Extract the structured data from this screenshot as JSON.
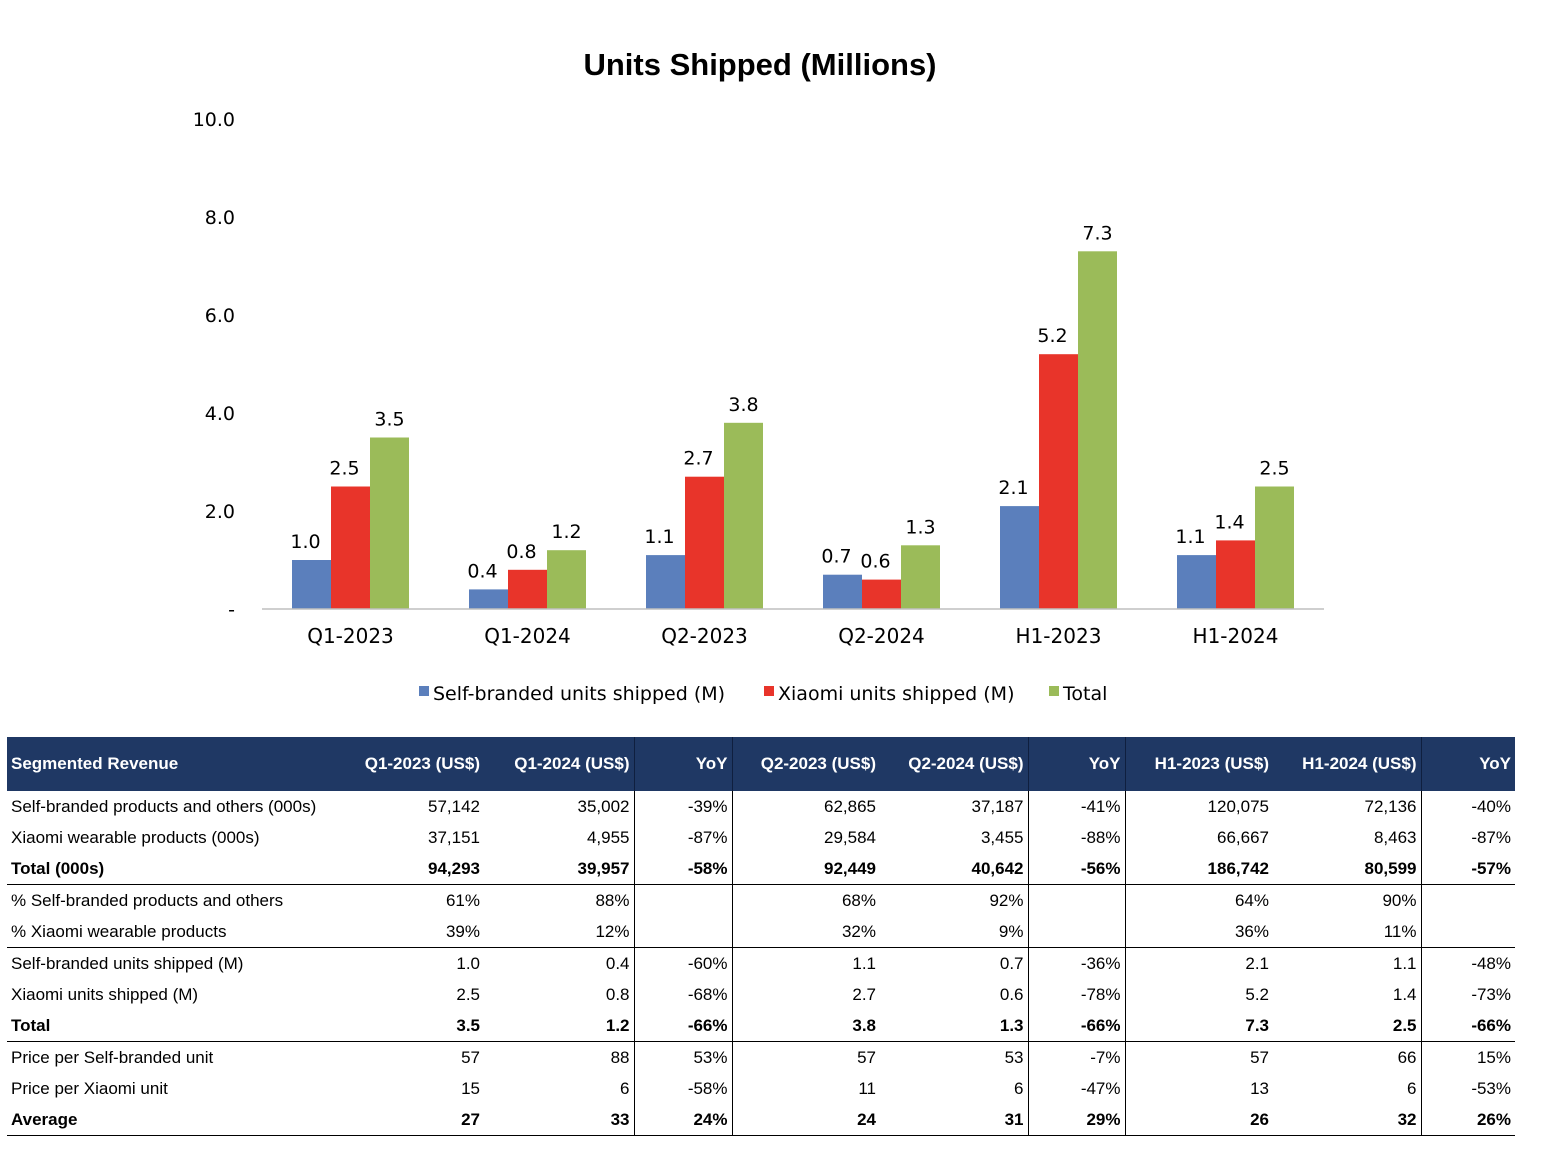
{
  "chart_data": {
    "type": "bar",
    "title": "Units  Shipped (Millions)",
    "categories": [
      "Q1-2023",
      "Q1-2024",
      "Q2-2023",
      "Q2-2024",
      "H1-2023",
      "H1-2024"
    ],
    "series": [
      {
        "name": "Self-branded units shipped (M)",
        "color": "#5b7fbc",
        "values": [
          1.0,
          0.4,
          1.1,
          0.7,
          2.1,
          1.1
        ],
        "labels": [
          "1.0",
          "0.4",
          "1.1",
          "0.7",
          "2.1",
          "1.1"
        ]
      },
      {
        "name": "Xiaomi units shipped (M)",
        "color": "#e8342a",
        "values": [
          2.5,
          0.8,
          2.7,
          0.6,
          5.2,
          1.4
        ],
        "labels": [
          "2.5",
          "0.8",
          "2.7",
          "0.6",
          "5.2",
          "1.4"
        ]
      },
      {
        "name": "Total",
        "color": "#9bbb59",
        "values": [
          3.5,
          1.2,
          3.8,
          1.3,
          7.3,
          2.5
        ],
        "labels": [
          "3.5",
          "1.2",
          "3.8",
          "1.3",
          "7.3",
          "2.5"
        ]
      }
    ],
    "ylim": [
      0,
      10
    ],
    "yticks": [
      0,
      2,
      4,
      6,
      8,
      10
    ],
    "ytick_labels": [
      "-",
      "2.0",
      "4.0",
      "6.0",
      "8.0",
      "10.0"
    ],
    "xlabel": "",
    "ylabel": "",
    "grid": false,
    "legend_position": "bottom"
  },
  "table": {
    "headers": [
      "Segmented Revenue",
      "Q1-2023 (US$)",
      "Q1-2024 (US$)",
      "YoY",
      "Q2-2023 (US$)",
      "Q2-2024 (US$)",
      "YoY",
      "H1-2023 (US$)",
      "H1-2024 (US$)",
      "YoY"
    ],
    "rows": [
      {
        "cells": [
          "Self-branded products and others (000s)",
          "57,142",
          "35,002",
          "-39%",
          "62,865",
          "37,187",
          "-41%",
          "120,075",
          "72,136",
          "-40%"
        ]
      },
      {
        "cells": [
          "Xiaomi wearable products (000s)",
          "37,151",
          "4,955",
          "-87%",
          "29,584",
          "3,455",
          "-88%",
          "66,667",
          "8,463",
          "-87%"
        ]
      },
      {
        "cells": [
          "Total (000s)",
          "94,293",
          "39,957",
          "-58%",
          "92,449",
          "40,642",
          "-56%",
          "186,742",
          "80,599",
          "-57%"
        ],
        "bold": true,
        "sep": true
      },
      {
        "cells": [
          "% Self-branded products and others",
          "61%",
          "88%",
          "",
          "68%",
          "92%",
          "",
          "64%",
          "90%",
          ""
        ]
      },
      {
        "cells": [
          "% Xiaomi wearable products",
          "39%",
          "12%",
          "",
          "32%",
          "9%",
          "",
          "36%",
          "11%",
          ""
        ],
        "sep": true
      },
      {
        "cells": [
          "Self-branded units shipped (M)",
          "1.0",
          "0.4",
          "-60%",
          "1.1",
          "0.7",
          "-36%",
          "2.1",
          "1.1",
          "-48%"
        ]
      },
      {
        "cells": [
          "Xiaomi units shipped (M)",
          "2.5",
          "0.8",
          "-68%",
          "2.7",
          "0.6",
          "-78%",
          "5.2",
          "1.4",
          "-73%"
        ]
      },
      {
        "cells": [
          "Total",
          "3.5",
          "1.2",
          "-66%",
          "3.8",
          "1.3",
          "-66%",
          "7.3",
          "2.5",
          "-66%"
        ],
        "bold": true,
        "sep": true
      },
      {
        "cells": [
          "Price per Self-branded unit",
          "57",
          "88",
          "53%",
          "57",
          "53",
          "-7%",
          "57",
          "66",
          "15%"
        ]
      },
      {
        "cells": [
          "Price per Xiaomi unit",
          "15",
          "6",
          "-58%",
          "11",
          "6",
          "-47%",
          "13",
          "6",
          "-53%"
        ]
      },
      {
        "cells": [
          "Average",
          "27",
          "33",
          "24%",
          "24",
          "31",
          "29%",
          "26",
          "32",
          "26%"
        ],
        "bold": true,
        "sep": true
      }
    ]
  }
}
